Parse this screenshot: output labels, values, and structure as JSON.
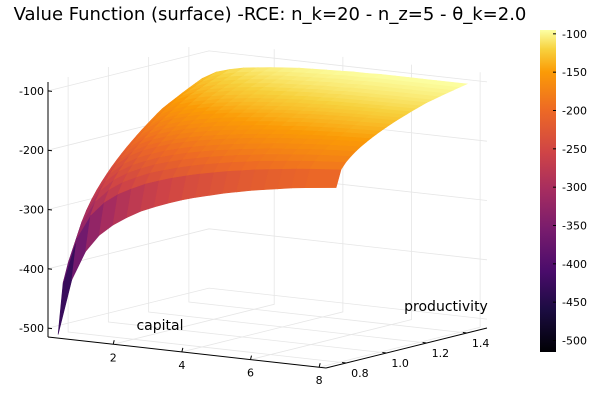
{
  "chart_data": {
    "type": "surface",
    "title": "Value Function (surface) -RCE: n_k=20 - n_z=5 - θ_k=2.0",
    "xlabel": "capital",
    "ylabel": "productivity",
    "zlabel": "",
    "x_ticks": [
      "2",
      "4",
      "6",
      "8"
    ],
    "y_ticks": [
      "0.8",
      "1.0",
      "1.2",
      "1.4"
    ],
    "z_ticks": [
      "-100",
      "-200",
      "-300",
      "-400",
      "-500"
    ],
    "xlim": [
      0.1,
      8.2
    ],
    "ylim": [
      0.7,
      1.5
    ],
    "zlim": [
      -515,
      -85
    ],
    "colorbar": {
      "colormap": "inferno",
      "clim": [
        -515,
        -95
      ],
      "ticks": [
        "-100",
        "-150",
        "-200",
        "-250",
        "-300",
        "-350",
        "-400",
        "-450",
        "-500"
      ]
    },
    "capital_grid": [
      0.1,
      0.5,
      0.9,
      1.3,
      1.7,
      2.1,
      2.5,
      2.9,
      3.3,
      3.7,
      4.1,
      4.5,
      4.9,
      5.3,
      5.7,
      6.1,
      6.5,
      6.9,
      7.3,
      8.2
    ],
    "productivity_grid": [
      0.75,
      0.9,
      1.05,
      1.2,
      1.4
    ],
    "value_low_productivity": [
      -515,
      -420,
      -370,
      -340,
      -320,
      -305,
      -292,
      -282,
      -273,
      -265,
      -258,
      -252,
      -246,
      -241,
      -236,
      -232,
      -228,
      -224,
      -221,
      -215
    ],
    "value_high_productivity": [
      -160,
      -135,
      -122,
      -115,
      -110,
      -107,
      -104,
      -102,
      -100,
      -99,
      -98,
      -97,
      -96,
      -96,
      -95,
      -95,
      -95,
      -95,
      -95,
      -95
    ]
  }
}
